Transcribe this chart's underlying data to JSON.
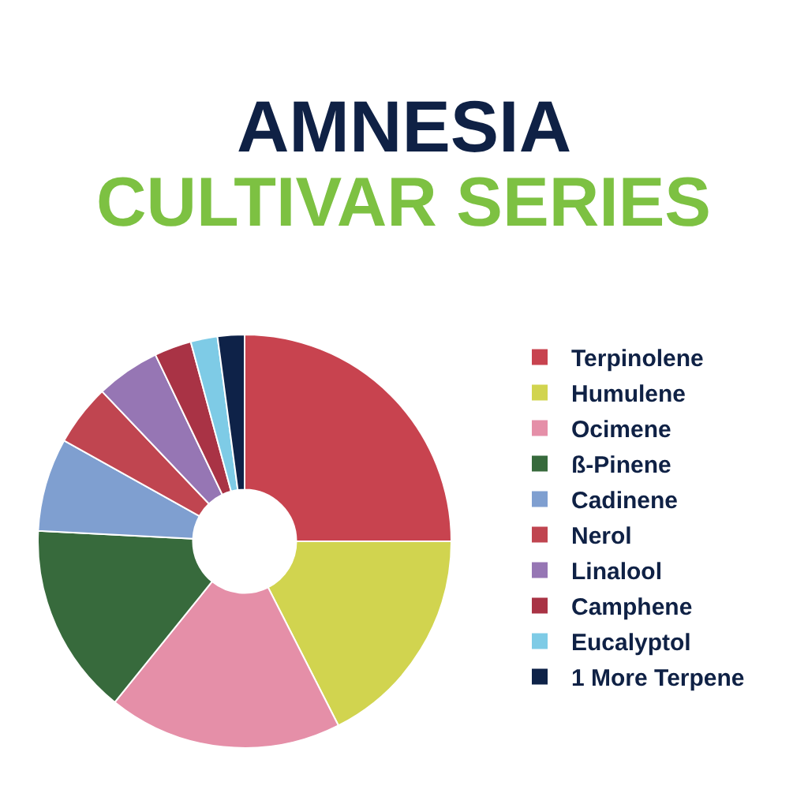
{
  "chart_data": {
    "type": "donut",
    "title": "AMNESIA",
    "subtitle": "CULTIVAR SERIES",
    "categories": [
      "Terpinolene",
      "Humulene",
      "Ocimene",
      "ß-Pinene",
      "Cadinene",
      "Nerol",
      "Linalool",
      "Camphene",
      "Eucalyptol",
      "1 More Terpene"
    ],
    "values": [
      25,
      17.5,
      18.3,
      15,
      7.3,
      4.8,
      5,
      2.9,
      2.1,
      2.1
    ],
    "colors": [
      "#c8434f",
      "#d1d44f",
      "#e58fa8",
      "#376a3c",
      "#7f9fd0",
      "#c04550",
      "#9676b4",
      "#a93345",
      "#7ecbe6",
      "#0e2248"
    ],
    "legend": "right"
  }
}
